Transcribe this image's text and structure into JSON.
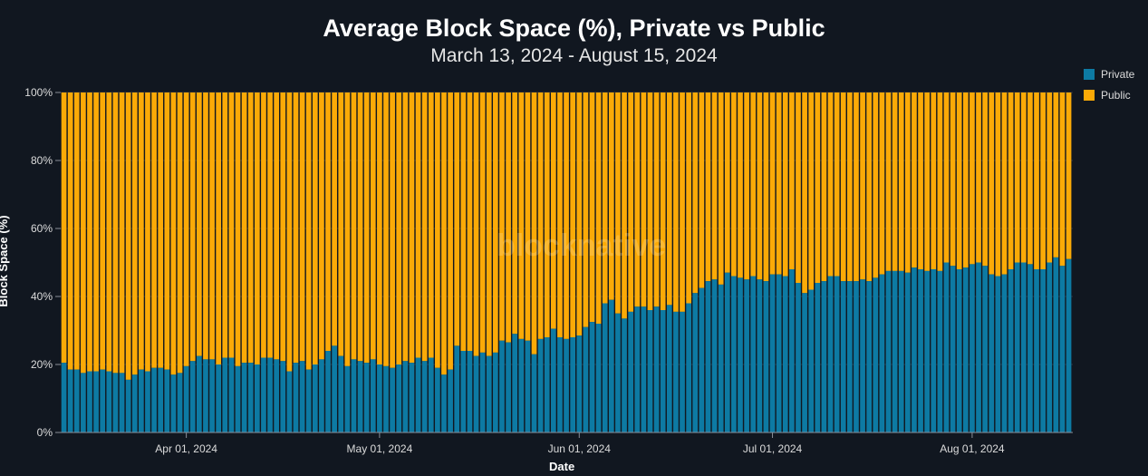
{
  "chart_data": {
    "type": "bar",
    "stacked": true,
    "title": "Average Block Space (%), Private vs Public",
    "subtitle": "March 13, 2024 - August 15, 2024",
    "xlabel": "Date",
    "ylabel": "Block Space (%)",
    "ylim": [
      0,
      100
    ],
    "yticks": [
      "0%",
      "20%",
      "40%",
      "60%",
      "80%",
      "100%"
    ],
    "x_start": "2024-03-13",
    "x_end": "2024-08-15",
    "xtick_dates": [
      "2024-04-01",
      "2024-05-01",
      "2024-06-01",
      "2024-07-01",
      "2024-08-01"
    ],
    "xtick_labels": [
      "Apr 01, 2024",
      "May 01, 2024",
      "Jun 01, 2024",
      "Jul 01, 2024",
      "Aug 01, 2024"
    ],
    "grid": true,
    "legend_position": "top-right",
    "series": [
      {
        "name": "Private",
        "color": "#0d7aa3",
        "values": [
          20.5,
          18.5,
          18.5,
          17.5,
          18,
          18,
          18.5,
          18,
          17.5,
          17.5,
          15.5,
          17,
          18.5,
          18,
          19,
          19,
          18.5,
          17,
          17.5,
          19.5,
          21,
          22.5,
          21.5,
          21.5,
          20,
          22,
          22,
          19.5,
          20.5,
          20.5,
          20,
          22,
          22,
          21.5,
          21,
          18,
          20.5,
          21,
          18.5,
          20,
          21.5,
          24,
          25.5,
          22.5,
          19.5,
          21.5,
          21,
          20.5,
          21.5,
          20,
          19.5,
          19,
          20,
          21,
          20.5,
          22,
          21,
          22,
          19,
          17,
          18.5,
          25.5,
          24,
          24,
          22.5,
          23.5,
          22.5,
          23.5,
          27,
          26.5,
          29,
          27.5,
          27,
          23,
          27.5,
          28,
          30.5,
          28,
          27.5,
          28,
          28.5,
          31,
          32.5,
          32,
          38,
          39,
          35,
          33.5,
          35.5,
          37,
          37,
          36,
          37,
          36,
          37.5,
          35.5,
          35.5,
          38,
          41,
          42.5,
          44.5,
          45,
          43.5,
          47,
          46,
          45.5,
          45,
          46,
          45,
          44.5,
          46.5,
          46.5,
          46,
          48,
          44,
          41,
          42,
          44,
          44.5,
          46,
          46,
          44.5,
          44.5,
          44.5,
          45,
          44.5,
          45.5,
          46.5,
          47.5,
          47.5,
          47.5,
          47,
          48.5,
          48,
          47.5,
          48,
          47.5,
          50,
          49,
          48,
          48.5,
          49.5,
          50,
          49,
          46.5,
          46,
          46.5,
          48,
          50,
          50,
          49.5,
          48,
          48,
          50,
          51.5,
          49,
          51
        ]
      },
      {
        "name": "Public",
        "color": "#fbaa07"
      }
    ]
  },
  "watermark": "blocknative"
}
